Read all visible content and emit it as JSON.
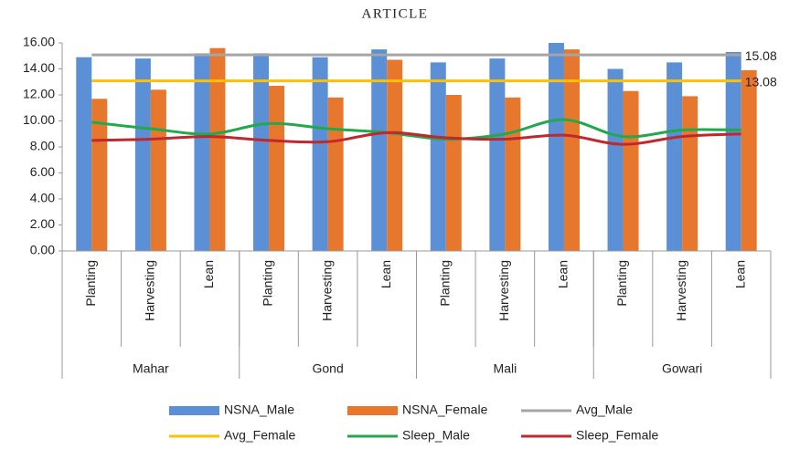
{
  "header": "ARTICLE",
  "chart_data": {
    "type": "bar",
    "categories": [
      "Planting",
      "Harvesting",
      "Lean",
      "Planting",
      "Harvesting",
      "Lean",
      "Planting",
      "Harvesting",
      "Lean",
      "Planting",
      "Harvesting",
      "Lean"
    ],
    "groups": [
      "Mahar",
      "Gond",
      "Mali",
      "Gowari"
    ],
    "ylim": [
      0,
      16
    ],
    "yticks": [
      {
        "value": 0,
        "label": "0.00"
      },
      {
        "value": 2,
        "label": "2.00"
      },
      {
        "value": 4,
        "label": "4.00"
      },
      {
        "value": 6,
        "label": "6.00"
      },
      {
        "value": 8,
        "label": "8.00"
      },
      {
        "value": 10,
        "label": "10.00"
      },
      {
        "value": 12,
        "label": "12.00"
      },
      {
        "value": 14,
        "label": "14.00"
      },
      {
        "value": 16,
        "label": "16.00"
      }
    ],
    "grid": false,
    "series": [
      {
        "name": "NSNA_Male",
        "type": "bar",
        "color": "#5b8fd6",
        "values": [
          14.9,
          14.8,
          15.2,
          15.2,
          14.9,
          15.5,
          14.5,
          14.8,
          16.0,
          14.0,
          14.5,
          15.3
        ]
      },
      {
        "name": "NSNA_Female",
        "type": "bar",
        "color": "#e8772e",
        "values": [
          11.7,
          12.4,
          15.6,
          12.7,
          11.8,
          14.7,
          12.0,
          11.8,
          15.5,
          12.3,
          11.9,
          13.9
        ]
      },
      {
        "name": "Avg_Male",
        "type": "line",
        "color": "#a5a5a5",
        "values": [
          15.08,
          15.08,
          15.08,
          15.08,
          15.08,
          15.08,
          15.08,
          15.08,
          15.08,
          15.08,
          15.08,
          15.08
        ]
      },
      {
        "name": "Avg_Female",
        "type": "line",
        "color": "#ffc000",
        "values": [
          13.08,
          13.08,
          13.08,
          13.08,
          13.08,
          13.08,
          13.08,
          13.08,
          13.08,
          13.08,
          13.08,
          13.08
        ]
      },
      {
        "name": "Sleep_Male",
        "type": "line",
        "color": "#23a84c",
        "values": [
          9.9,
          9.4,
          9.0,
          9.8,
          9.4,
          9.1,
          8.6,
          9.0,
          10.1,
          8.8,
          9.3,
          9.3
        ]
      },
      {
        "name": "Sleep_Female",
        "type": "line",
        "color": "#c0282d",
        "values": [
          8.5,
          8.6,
          8.8,
          8.5,
          8.4,
          9.1,
          8.7,
          8.6,
          8.9,
          8.2,
          8.8,
          9.0
        ]
      }
    ]
  }
}
